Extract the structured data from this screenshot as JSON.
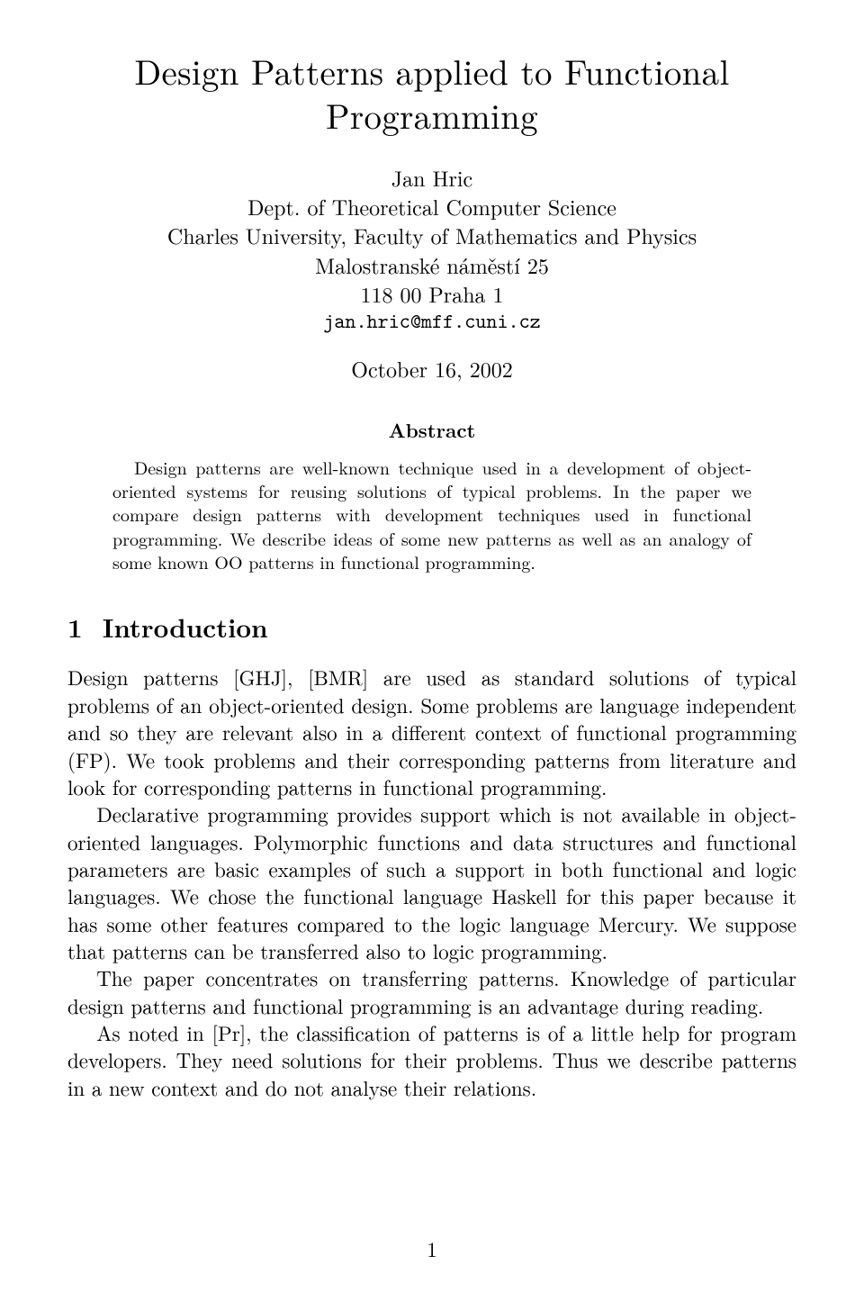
{
  "title": "Design Patterns applied to Functional Programming",
  "author": {
    "name": "Jan Hric",
    "dept": "Dept. of Theoretical Computer Science",
    "univ": "Charles University, Faculty of Mathematics and Physics",
    "address1": "Malostranské náměstí 25",
    "address2": "118 00 Praha 1",
    "email": "jan.hric@mff.cuni.cz"
  },
  "date": "October 16, 2002",
  "abstract": {
    "heading": "Abstract",
    "text": "Design patterns are well-known technique used in a development of object-oriented systems for reusing solutions of typical problems. In the paper we compare design patterns with development techniques used in functional programming. We describe ideas of some new patterns as well as an analogy of some known OO patterns in functional programming."
  },
  "section": {
    "number": "1",
    "title": "Introduction"
  },
  "paras": {
    "p1": "Design patterns [GHJ], [BMR] are used as standard solutions of typical problems of an object-oriented design. Some problems are language independent and so they are relevant also in a different context of functional programming (FP). We took problems and their corresponding patterns from literature and look for corresponding patterns in functional programming.",
    "p2": "Declarative programming provides support which is not available in object-oriented languages. Polymorphic functions and data structures and functional parameters are basic examples of such a support in both functional and logic languages. We chose the functional language Haskell for this paper because it has some other features compared to the logic language Mercury. We suppose that patterns can be transferred also to logic programming.",
    "p3": "The paper concentrates on transferring patterns. Knowledge of particular design patterns and functional programming is an advantage during reading.",
    "p4": "As noted in [Pr], the classification of patterns is of a little help for program developers. They need solutions for their problems. Thus we describe patterns in a new context and do not analyse their relations."
  },
  "page_number": "1"
}
